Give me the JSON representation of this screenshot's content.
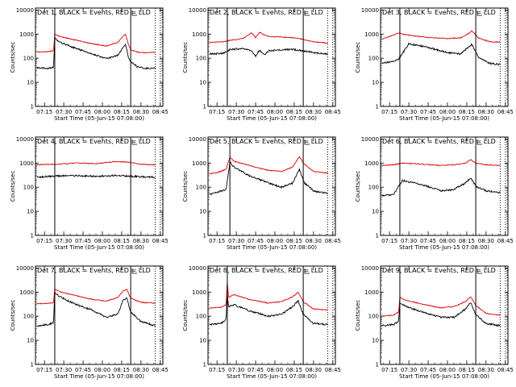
{
  "figure": {
    "time_axis_label": "Start Time (05-Jun-15 07:08:00)",
    "y_axis_label": "Counts/sec",
    "y_tick_labels": [
      "1",
      "10",
      "100",
      "1000",
      "10000"
    ],
    "x_tick_labels": [
      "07:15",
      "07:30",
      "07:45",
      "08:00",
      "08:15",
      "08:30",
      "08:45"
    ],
    "colors": {
      "events": "#000000",
      "lld": "#e00000",
      "background": "#ffffff"
    }
  },
  "chart_data": [
    {
      "type": "line",
      "title": "Det 1, BLACK = Events, RED = LLD",
      "yscale": "log",
      "ylim": [
        1,
        12000
      ],
      "xlim": [
        "07:08",
        "08:47"
      ],
      "xlabel": "Start Time (05-Jun-15 07:08:00)",
      "ylabel": "Counts/sec",
      "legend_placement": "top-right",
      "markers": {
        "solid": [
          "07:23",
          "08:22"
        ],
        "dotted": [
          "08:41",
          "08:45"
        ]
      },
      "series": [
        {
          "label": "BLACK = Events",
          "color": "#000000",
          "x": [
            "07:09",
            "07:18",
            "07:22",
            "07:23",
            "07:27",
            "07:40",
            "07:52",
            "08:03",
            "08:12",
            "08:16",
            "08:18",
            "08:20",
            "08:22",
            "08:27",
            "08:33",
            "08:41"
          ],
          "y": [
            40,
            38,
            42,
            700,
            450,
            250,
            150,
            95,
            130,
            280,
            380,
            120,
            70,
            45,
            38,
            40
          ]
        },
        {
          "label": "RED = LLD",
          "color": "#e00000",
          "x": [
            "07:09",
            "07:18",
            "07:22",
            "07:23",
            "07:27",
            "07:40",
            "07:52",
            "08:03",
            "08:12",
            "08:16",
            "08:18",
            "08:20",
            "08:22",
            "08:27",
            "08:33",
            "08:41"
          ],
          "y": [
            180,
            190,
            200,
            1000,
            800,
            550,
            400,
            320,
            450,
            800,
            1000,
            400,
            220,
            180,
            170,
            175
          ]
        }
      ]
    },
    {
      "type": "line",
      "title": "Det 2, BLACK = Events, RED = LLD",
      "yscale": "log",
      "ylim": [
        1,
        12000
      ],
      "xlim": [
        "07:08",
        "08:47"
      ],
      "xlabel": "Start Time (05-Jun-15 07:08:00)",
      "ylabel": "Counts/sec",
      "legend_placement": "top-right",
      "markers": {
        "solid": [
          "07:23",
          "08:22"
        ],
        "dotted": [
          "08:41",
          "08:45"
        ]
      },
      "series": [
        {
          "label": "BLACK = Events",
          "color": "#000000",
          "x": [
            "07:09",
            "07:20",
            "07:25",
            "07:35",
            "07:42",
            "07:45",
            "07:48",
            "07:52",
            "07:55",
            "08:05",
            "08:15",
            "08:22",
            "08:30",
            "08:41"
          ],
          "y": [
            150,
            160,
            230,
            250,
            200,
            120,
            220,
            140,
            200,
            220,
            230,
            200,
            170,
            150
          ]
        },
        {
          "label": "RED = LLD",
          "color": "#e00000",
          "x": [
            "07:09",
            "07:20",
            "07:25",
            "07:35",
            "07:42",
            "07:45",
            "07:48",
            "07:52",
            "07:55",
            "08:05",
            "08:15",
            "08:22",
            "08:30",
            "08:41"
          ],
          "y": [
            450,
            480,
            550,
            650,
            1150,
            700,
            1200,
            900,
            800,
            750,
            700,
            600,
            480,
            420
          ]
        }
      ]
    },
    {
      "type": "line",
      "title": "Det 3, BLACK = Events, RED = LLD",
      "yscale": "log",
      "ylim": [
        1,
        12000
      ],
      "xlim": [
        "07:08",
        "08:47"
      ],
      "xlabel": "Start Time (05-Jun-15 07:08:00)",
      "ylabel": "Counts/sec",
      "legend_placement": "top-right",
      "markers": {
        "solid": [
          "07:23",
          "08:22"
        ],
        "dotted": [
          "08:41",
          "08:45"
        ]
      },
      "series": [
        {
          "label": "BLACK = Events",
          "color": "#000000",
          "x": [
            "07:09",
            "07:15",
            "07:22",
            "07:30",
            "07:45",
            "08:00",
            "08:10",
            "08:16",
            "08:19",
            "08:24",
            "08:33",
            "08:41"
          ],
          "y": [
            60,
            70,
            90,
            400,
            280,
            170,
            150,
            280,
            380,
            110,
            60,
            55
          ]
        },
        {
          "label": "RED = LLD",
          "color": "#e00000",
          "x": [
            "07:09",
            "07:15",
            "07:22",
            "07:30",
            "07:45",
            "08:00",
            "08:10",
            "08:16",
            "08:19",
            "08:24",
            "08:33",
            "08:41"
          ],
          "y": [
            600,
            800,
            1100,
            900,
            720,
            650,
            700,
            1000,
            1400,
            700,
            480,
            460
          ]
        }
      ]
    },
    {
      "type": "line",
      "title": "Det 4, BLACK = Events, RED = LLD",
      "yscale": "log",
      "ylim": [
        1,
        12000
      ],
      "xlim": [
        "07:08",
        "08:47"
      ],
      "xlabel": "Start Time (05-Jun-15 07:08:00)",
      "ylabel": "Counts/sec",
      "legend_placement": "top-right",
      "markers": {
        "solid": [
          "07:23",
          "08:22"
        ],
        "dotted": [
          "08:41",
          "08:45"
        ]
      },
      "series": [
        {
          "label": "BLACK = Events",
          "color": "#000000",
          "x": [
            "07:09",
            "07:25",
            "07:40",
            "07:55",
            "08:10",
            "08:20",
            "08:30",
            "08:41"
          ],
          "y": [
            260,
            290,
            300,
            280,
            300,
            290,
            270,
            260
          ]
        },
        {
          "label": "RED = LLD",
          "color": "#e00000",
          "x": [
            "07:09",
            "07:25",
            "07:40",
            "07:55",
            "08:10",
            "08:20",
            "08:30",
            "08:41"
          ],
          "y": [
            850,
            900,
            1000,
            950,
            1150,
            1100,
            900,
            850
          ]
        }
      ]
    },
    {
      "type": "line",
      "title": "Det 5, BLACK = Events, RED = LLD",
      "yscale": "log",
      "ylim": [
        1,
        12000
      ],
      "xlim": [
        "07:08",
        "08:47"
      ],
      "xlabel": "Start Time (05-Jun-15 07:08:00)",
      "ylabel": "Counts/sec",
      "legend_placement": "top-right",
      "markers": {
        "solid": [
          "07:25",
          "08:22"
        ],
        "dotted": [
          "08:41",
          "08:45"
        ]
      },
      "series": [
        {
          "label": "BLACK = Events",
          "color": "#000000",
          "x": [
            "07:09",
            "07:15",
            "07:22",
            "07:25",
            "07:28",
            "07:40",
            "07:55",
            "08:05",
            "08:14",
            "08:17",
            "08:19",
            "08:23",
            "08:30",
            "08:41"
          ],
          "y": [
            50,
            60,
            80,
            1100,
            700,
            300,
            150,
            100,
            150,
            350,
            550,
            150,
            70,
            55
          ]
        },
        {
          "label": "RED = LLD",
          "color": "#e00000",
          "x": [
            "07:09",
            "07:15",
            "07:22",
            "07:25",
            "07:28",
            "07:40",
            "07:55",
            "08:05",
            "08:14",
            "08:17",
            "08:19",
            "08:23",
            "08:30",
            "08:41"
          ],
          "y": [
            350,
            400,
            550,
            1800,
            1200,
            800,
            500,
            450,
            700,
            1300,
            1800,
            900,
            450,
            380
          ]
        }
      ]
    },
    {
      "type": "line",
      "title": "Det 6, BLACK = Events, RED = LLD",
      "yscale": "log",
      "ylim": [
        1,
        12000
      ],
      "xlim": [
        "07:08",
        "08:47"
      ],
      "xlabel": "Start Time (05-Jun-15 07:08:00)",
      "ylabel": "Counts/sec",
      "legend_placement": "top-right",
      "markers": {
        "solid": [
          "07:23",
          "08:22"
        ],
        "dotted": [
          "08:41",
          "08:45"
        ]
      },
      "series": [
        {
          "label": "BLACK = Events",
          "color": "#000000",
          "x": [
            "07:09",
            "07:18",
            "07:25",
            "07:40",
            "07:55",
            "08:05",
            "08:14",
            "08:18",
            "08:22",
            "08:30",
            "08:41"
          ],
          "y": [
            45,
            50,
            190,
            130,
            70,
            80,
            150,
            250,
            110,
            70,
            60
          ]
        },
        {
          "label": "RED = LLD",
          "color": "#e00000",
          "x": [
            "07:09",
            "07:18",
            "07:25",
            "07:40",
            "07:55",
            "08:05",
            "08:14",
            "08:18",
            "08:22",
            "08:30",
            "08:41"
          ],
          "y": [
            800,
            850,
            1000,
            900,
            800,
            850,
            1000,
            1400,
            1000,
            850,
            800
          ]
        }
      ]
    },
    {
      "type": "line",
      "title": "Det 7, BLACK = Events, RED = LLD",
      "yscale": "log",
      "ylim": [
        1,
        12000
      ],
      "xlim": [
        "07:08",
        "08:47"
      ],
      "xlabel": "Start Time (05-Jun-15 07:08:00)",
      "ylabel": "Counts/sec",
      "legend_placement": "top-right",
      "markers": {
        "solid": [
          "07:23",
          "08:22"
        ],
        "dotted": [
          "08:41",
          "08:45"
        ]
      },
      "series": [
        {
          "label": "BLACK = Events",
          "color": "#000000",
          "x": [
            "07:09",
            "07:18",
            "07:22",
            "07:23",
            "07:28",
            "07:40",
            "07:52",
            "08:03",
            "08:12",
            "08:16",
            "08:19",
            "08:22",
            "08:30",
            "08:41"
          ],
          "y": [
            40,
            45,
            55,
            900,
            600,
            300,
            180,
            90,
            120,
            450,
            550,
            150,
            60,
            40
          ]
        },
        {
          "label": "RED = LLD",
          "color": "#e00000",
          "x": [
            "07:09",
            "07:18",
            "07:22",
            "07:23",
            "07:28",
            "07:40",
            "07:52",
            "08:03",
            "08:12",
            "08:16",
            "08:19",
            "08:22",
            "08:30",
            "08:41"
          ],
          "y": [
            330,
            340,
            360,
            1300,
            1000,
            700,
            500,
            420,
            600,
            1100,
            1300,
            550,
            380,
            340
          ]
        }
      ]
    },
    {
      "type": "line",
      "title": "Det 8, BLACK = Events, RED = LLD",
      "yscale": "log",
      "ylim": [
        1,
        12000
      ],
      "xlim": [
        "07:08",
        "08:47"
      ],
      "xlabel": "Start Time (05-Jun-15 07:08:00)",
      "ylabel": "Counts/sec",
      "legend_placement": "top-right",
      "markers": {
        "solid": [
          "07:23",
          "08:22"
        ],
        "dotted": [
          "08:41",
          "08:45"
        ]
      },
      "series": [
        {
          "label": "BLACK = Events",
          "color": "#000000",
          "x": [
            "07:09",
            "07:18",
            "07:22",
            "07:23",
            "07:24",
            "07:28",
            "07:40",
            "07:55",
            "08:05",
            "08:14",
            "08:18",
            "08:22",
            "08:30",
            "08:41"
          ],
          "y": [
            45,
            50,
            70,
            800,
            250,
            300,
            170,
            100,
            120,
            250,
            450,
            120,
            50,
            45
          ]
        },
        {
          "label": "RED = LLD",
          "color": "#e00000",
          "x": [
            "07:09",
            "07:18",
            "07:22",
            "07:23",
            "07:24",
            "07:28",
            "07:40",
            "07:55",
            "08:05",
            "08:14",
            "08:18",
            "08:22",
            "08:30",
            "08:41"
          ],
          "y": [
            220,
            230,
            300,
            2500,
            600,
            800,
            500,
            350,
            400,
            650,
            1000,
            400,
            200,
            180
          ]
        }
      ]
    },
    {
      "type": "line",
      "title": "Det 9, BLACK = Events, RED = LLD",
      "yscale": "log",
      "ylim": [
        1,
        12000
      ],
      "xlim": [
        "07:08",
        "08:47"
      ],
      "xlabel": "Start Time (05-Jun-15 07:08:00)",
      "ylabel": "Counts/sec",
      "legend_placement": "top-right",
      "markers": {
        "solid": [
          "07:23",
          "08:22"
        ],
        "dotted": [
          "08:41",
          "08:45"
        ]
      },
      "series": [
        {
          "label": "BLACK = Events",
          "color": "#000000",
          "x": [
            "07:09",
            "07:18",
            "07:22",
            "07:23",
            "07:28",
            "07:40",
            "07:55",
            "08:05",
            "08:14",
            "08:18",
            "08:22",
            "08:30",
            "08:41"
          ],
          "y": [
            40,
            45,
            60,
            350,
            250,
            150,
            90,
            90,
            200,
            380,
            120,
            50,
            40
          ]
        },
        {
          "label": "RED = LLD",
          "color": "#e00000",
          "x": [
            "07:09",
            "07:18",
            "07:22",
            "07:23",
            "07:28",
            "07:40",
            "07:55",
            "08:05",
            "08:14",
            "08:18",
            "08:22",
            "08:30",
            "08:41"
          ],
          "y": [
            100,
            110,
            150,
            600,
            450,
            320,
            220,
            250,
            400,
            650,
            280,
            130,
            110
          ]
        }
      ]
    }
  ]
}
